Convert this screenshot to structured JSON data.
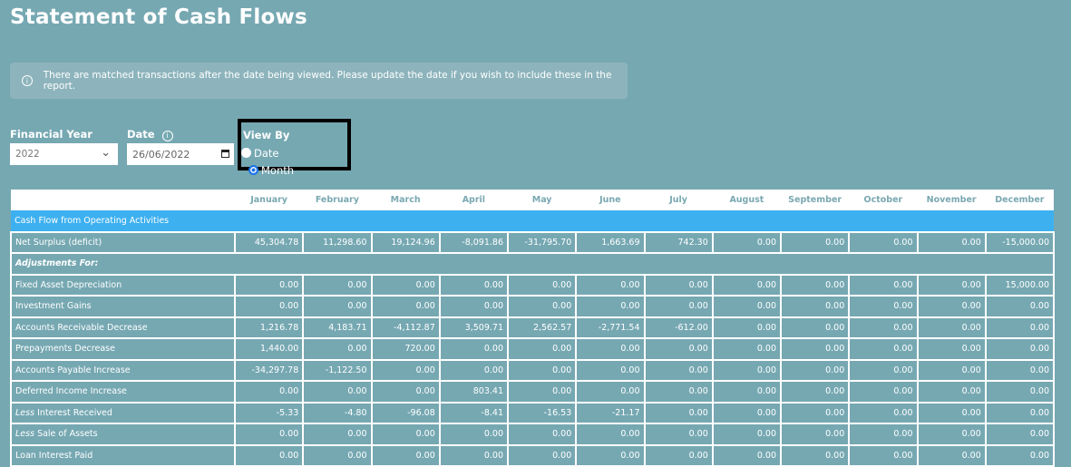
{
  "page": {
    "title": "Statement of Cash Flows"
  },
  "alert": {
    "icon": "info-icon",
    "text": "There are matched transactions after the date being viewed. Please update the date if you wish to include these in the report."
  },
  "filters": {
    "financial_year": {
      "label": "Financial Year",
      "value": "2022"
    },
    "date": {
      "label": "Date",
      "value": "26/06/2022"
    },
    "view_by": {
      "label": "View By",
      "options": [
        "Date",
        "Month"
      ],
      "selected": "Month"
    }
  },
  "colors": {
    "background": "#76a8b2",
    "section": "#3db0f0",
    "radio_selected": "#1a73e8"
  },
  "table": {
    "months": [
      "January",
      "February",
      "March",
      "April",
      "May",
      "June",
      "July",
      "August",
      "September",
      "October",
      "November",
      "December"
    ],
    "rows": [
      {
        "type": "section",
        "label": "Cash Flow from Operating Activities"
      },
      {
        "label": "Net Surplus (deficit)",
        "values": [
          "45,304.78",
          "11,298.60",
          "19,124.96",
          "-8,091.86",
          "-31,795.70",
          "1,663.69",
          "742.30",
          "0.00",
          "0.00",
          "0.00",
          "0.00",
          "-15,000.00"
        ]
      },
      {
        "type": "sub",
        "label": "Adjustments For:"
      },
      {
        "label": "Fixed Asset Depreciation",
        "values": [
          "0.00",
          "0.00",
          "0.00",
          "0.00",
          "0.00",
          "0.00",
          "0.00",
          "0.00",
          "0.00",
          "0.00",
          "0.00",
          "15,000.00"
        ]
      },
      {
        "label": "Investment Gains",
        "values": [
          "0.00",
          "0.00",
          "0.00",
          "0.00",
          "0.00",
          "0.00",
          "0.00",
          "0.00",
          "0.00",
          "0.00",
          "0.00",
          "0.00"
        ]
      },
      {
        "label": "Accounts Receivable Decrease",
        "values": [
          "1,216.78",
          "4,183.71",
          "-4,112.87",
          "3,509.71",
          "2,562.57",
          "-2,771.54",
          "-612.00",
          "0.00",
          "0.00",
          "0.00",
          "0.00",
          "0.00"
        ]
      },
      {
        "label": "Prepayments Decrease",
        "values": [
          "1,440.00",
          "0.00",
          "720.00",
          "0.00",
          "0.00",
          "0.00",
          "0.00",
          "0.00",
          "0.00",
          "0.00",
          "0.00",
          "0.00"
        ]
      },
      {
        "label": "Accounts Payable Increase",
        "values": [
          "-34,297.78",
          "-1,122.50",
          "0.00",
          "0.00",
          "0.00",
          "0.00",
          "0.00",
          "0.00",
          "0.00",
          "0.00",
          "0.00",
          "0.00"
        ]
      },
      {
        "label": "Deferred Income Increase",
        "values": [
          "0.00",
          "0.00",
          "0.00",
          "803.41",
          "0.00",
          "0.00",
          "0.00",
          "0.00",
          "0.00",
          "0.00",
          "0.00",
          "0.00"
        ]
      },
      {
        "prefix": "Less",
        "label": " Interest Received",
        "values": [
          "-5.33",
          "-4.80",
          "-96.08",
          "-8.41",
          "-16.53",
          "-21.17",
          "0.00",
          "0.00",
          "0.00",
          "0.00",
          "0.00",
          "0.00"
        ]
      },
      {
        "prefix": "Less",
        "label": " Sale of Assets",
        "values": [
          "0.00",
          "0.00",
          "0.00",
          "0.00",
          "0.00",
          "0.00",
          "0.00",
          "0.00",
          "0.00",
          "0.00",
          "0.00",
          "0.00"
        ]
      },
      {
        "label": "Loan Interest Paid",
        "values": [
          "0.00",
          "0.00",
          "0.00",
          "0.00",
          "0.00",
          "0.00",
          "0.00",
          "0.00",
          "0.00",
          "0.00",
          "0.00",
          "0.00"
        ]
      }
    ]
  }
}
